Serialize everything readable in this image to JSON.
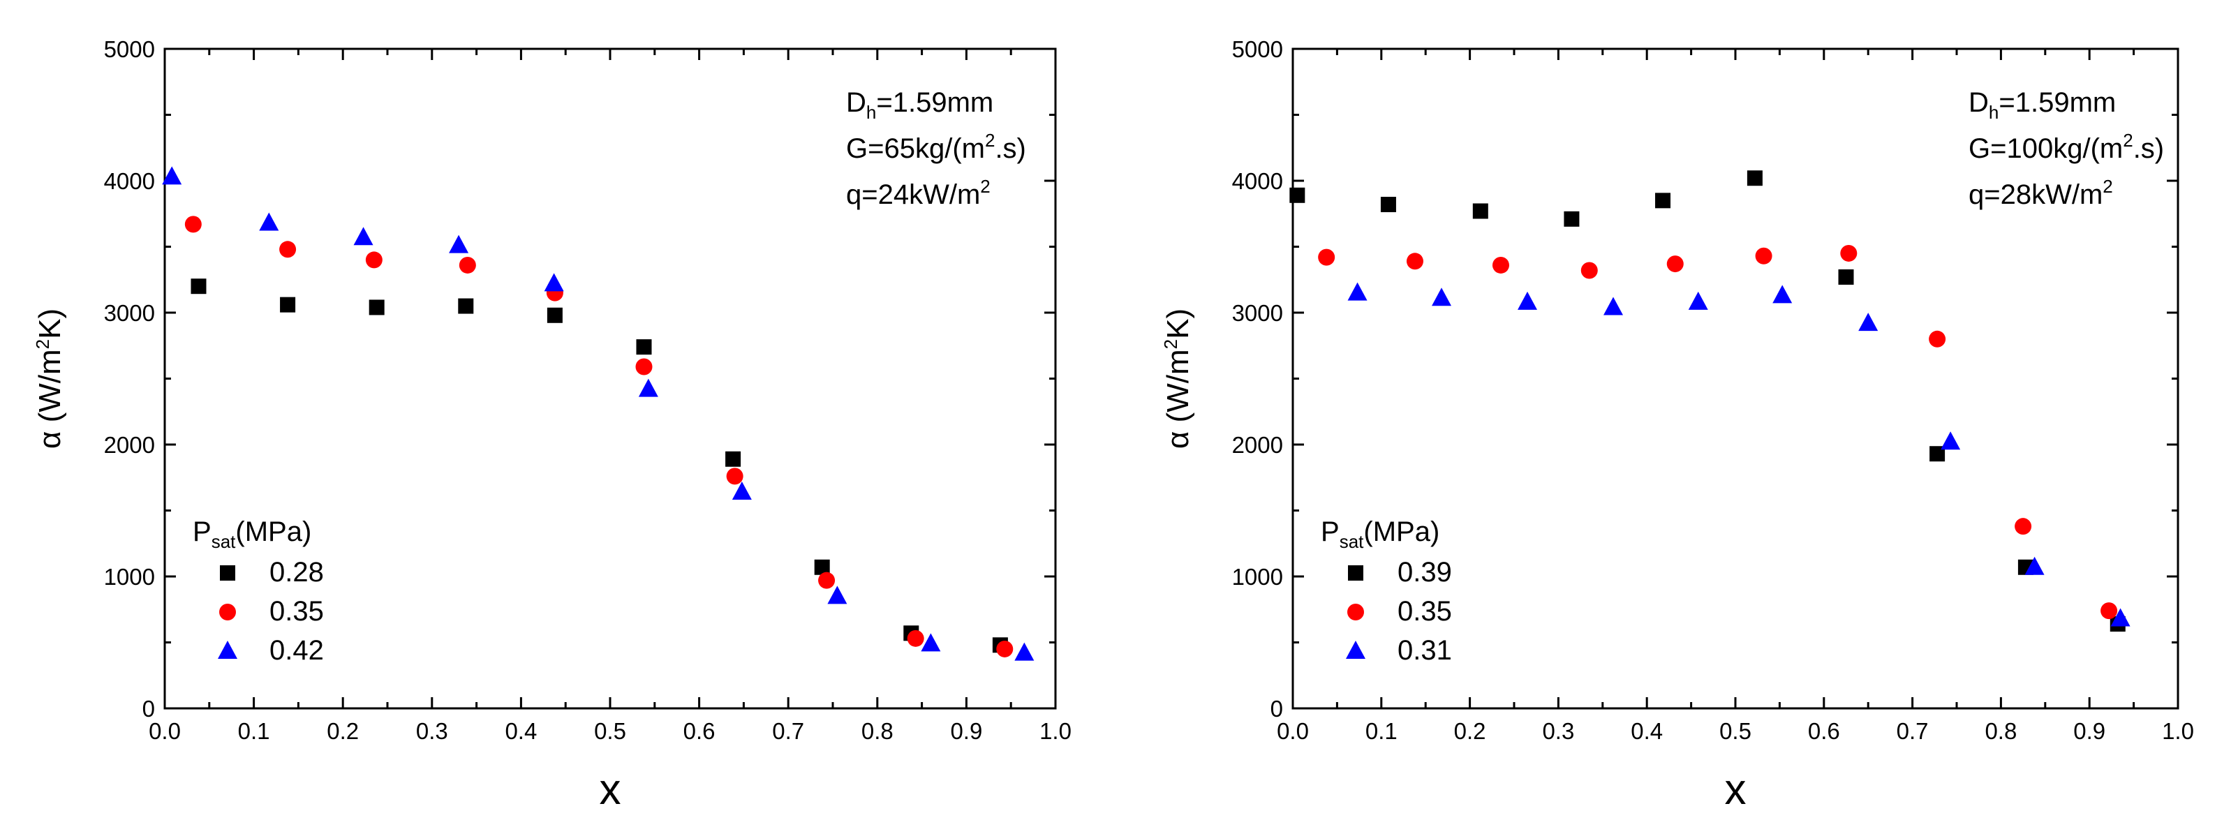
{
  "chart_data": [
    {
      "type": "scatter",
      "title": "",
      "xlabel": "x",
      "ylabel": {
        "pre": "α (W/m",
        "sup": "2",
        "post": "K)"
      },
      "xlim": [
        0.0,
        1.0
      ],
      "ylim": [
        0,
        5000
      ],
      "xticks": [
        "0.0",
        "0.1",
        "0.2",
        "0.3",
        "0.4",
        "0.5",
        "0.6",
        "0.7",
        "0.8",
        "0.9",
        "1.0"
      ],
      "yticks": [
        "0",
        "1000",
        "2000",
        "3000",
        "4000",
        "5000"
      ],
      "annotation": {
        "line1": {
          "pre": "D",
          "sub": "h",
          "post": "=1.59mm"
        },
        "line2": {
          "pre": "G=65kg/(m",
          "sup": "2",
          "post": ".s)"
        },
        "line3": {
          "pre": "q=24kW/m",
          "sup": "2",
          "post": ""
        }
      },
      "legend": {
        "title": {
          "pre": "P",
          "sub": "sat",
          "post": "(MPa)"
        },
        "placement": "bottom-left"
      },
      "grid": false,
      "series": [
        {
          "name": "0.28",
          "marker": "square",
          "color": "#000000",
          "x": [
            0.038,
            0.138,
            0.238,
            0.338,
            0.438,
            0.538,
            0.638,
            0.738,
            0.838,
            0.938
          ],
          "y": [
            3200,
            3060,
            3040,
            3050,
            2980,
            2740,
            1890,
            1070,
            570,
            480
          ]
        },
        {
          "name": "0.35",
          "marker": "circle",
          "color": "#ff0000",
          "x": [
            0.032,
            0.138,
            0.235,
            0.34,
            0.438,
            0.538,
            0.64,
            0.743,
            0.843,
            0.943
          ],
          "y": [
            3670,
            3480,
            3400,
            3360,
            3150,
            2590,
            1760,
            970,
            530,
            450
          ]
        },
        {
          "name": "0.42",
          "marker": "triangle",
          "color": "#0000ff",
          "x": [
            0.008,
            0.117,
            0.223,
            0.33,
            0.437,
            0.543,
            0.648,
            0.755,
            0.86,
            0.965
          ],
          "y": [
            4030,
            3680,
            3570,
            3510,
            3220,
            2420,
            1640,
            850,
            490,
            420
          ]
        }
      ]
    },
    {
      "type": "scatter",
      "title": "",
      "xlabel": "x",
      "ylabel": {
        "pre": "α (W/m",
        "sup": "2",
        "post": "K)"
      },
      "xlim": [
        0.0,
        1.0
      ],
      "ylim": [
        0,
        5000
      ],
      "xticks": [
        "0.0",
        "0.1",
        "0.2",
        "0.3",
        "0.4",
        "0.5",
        "0.6",
        "0.7",
        "0.8",
        "0.9",
        "1.0"
      ],
      "yticks": [
        "0",
        "1000",
        "2000",
        "3000",
        "4000",
        "5000"
      ],
      "annotation": {
        "line1": {
          "pre": "D",
          "sub": "h",
          "post": "=1.59mm"
        },
        "line2": {
          "pre": "G=100kg/(m",
          "sup": "2",
          "post": ".s)"
        },
        "line3": {
          "pre": "q=28kW/m",
          "sup": "2",
          "post": ""
        }
      },
      "legend": {
        "title": {
          "pre": "P",
          "sub": "sat",
          "post": "(MPa)"
        },
        "placement": "bottom-left"
      },
      "grid": false,
      "series": [
        {
          "name": "0.39",
          "marker": "square",
          "color": "#000000",
          "x": [
            0.005,
            0.108,
            0.212,
            0.315,
            0.418,
            0.522,
            0.625,
            0.728,
            0.828,
            0.932
          ],
          "y": [
            3890,
            3820,
            3770,
            3710,
            3850,
            4020,
            3270,
            1930,
            1070,
            640
          ]
        },
        {
          "name": "0.35",
          "marker": "circle",
          "color": "#ff0000",
          "x": [
            0.038,
            0.138,
            0.235,
            0.335,
            0.432,
            0.532,
            0.628,
            0.728,
            0.825,
            0.922
          ],
          "y": [
            3420,
            3390,
            3360,
            3320,
            3370,
            3430,
            3450,
            2800,
            1380,
            740
          ]
        },
        {
          "name": "0.31",
          "marker": "triangle",
          "color": "#0000ff",
          "x": [
            0.073,
            0.168,
            0.265,
            0.362,
            0.458,
            0.553,
            0.65,
            0.743,
            0.838,
            0.935
          ],
          "y": [
            3150,
            3110,
            3080,
            3040,
            3080,
            3130,
            2920,
            2020,
            1070,
            680
          ]
        }
      ]
    }
  ]
}
